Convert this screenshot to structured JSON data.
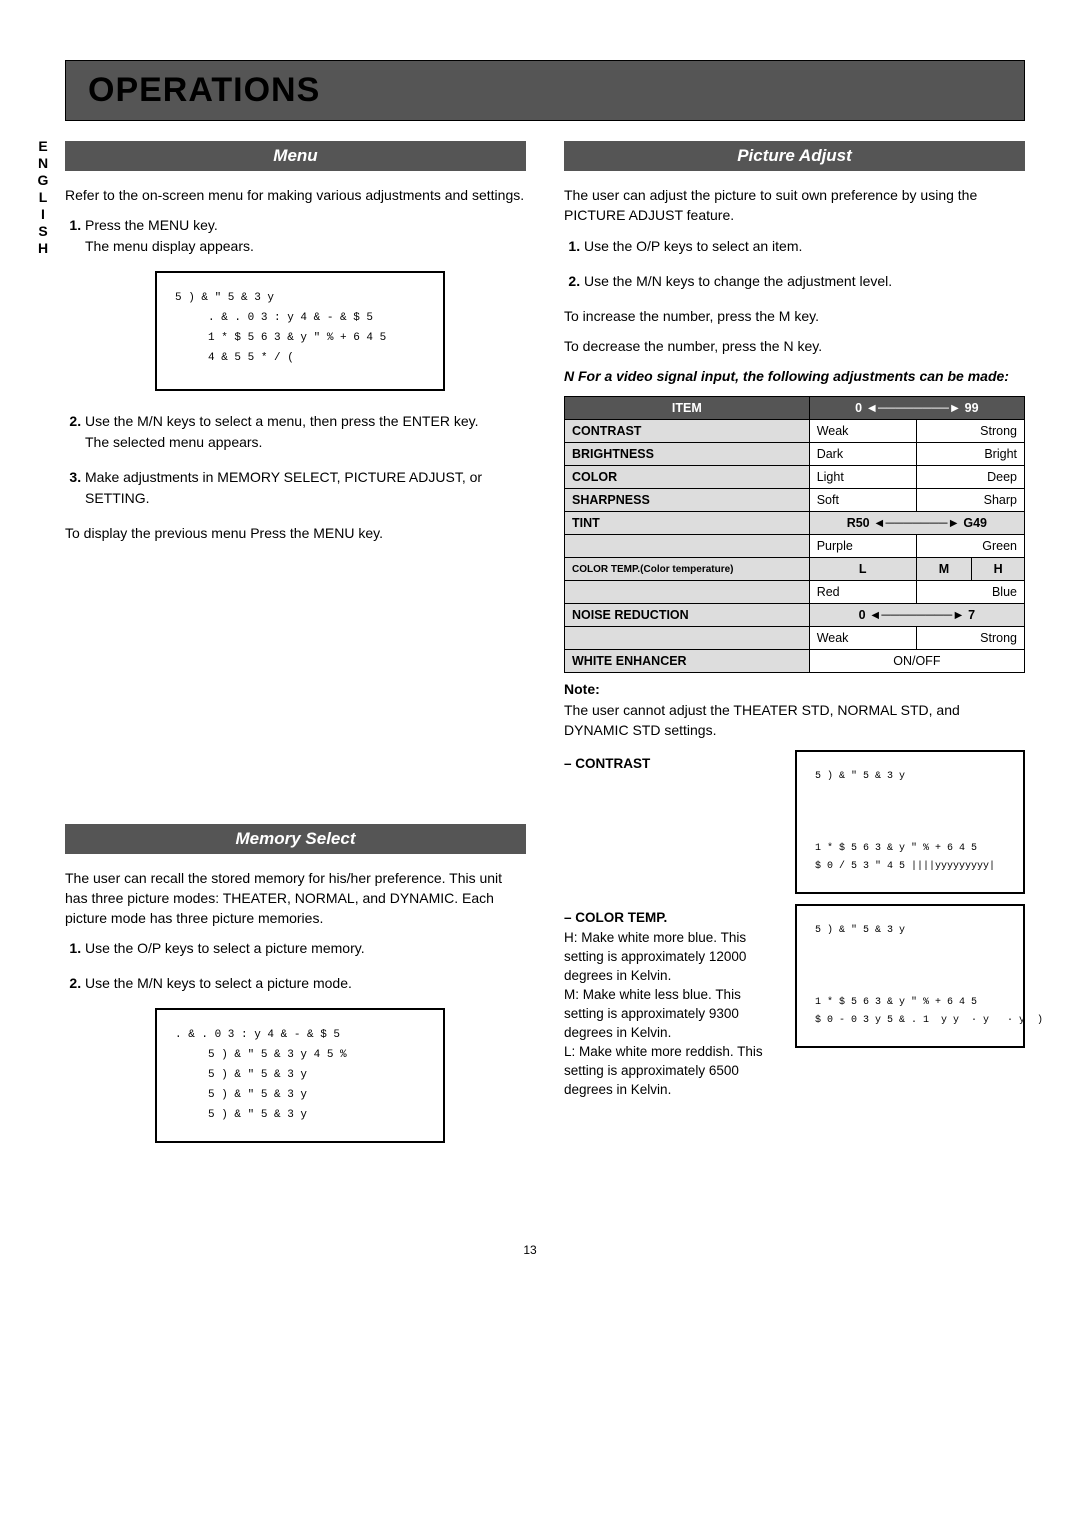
{
  "sidebar": "ENGLISH",
  "banner": "OPERATIONS",
  "left": {
    "menu": {
      "title": "Menu",
      "intro": "Refer to the on-screen menu for making various adjustments and settings.",
      "steps": [
        "Press the MENU key.\nThe menu display appears.",
        "Use the M/N  keys to select a menu, then press the ENTER key.\nThe selected menu appears.",
        "Make adjustments in MEMORY SELECT, PICTURE ADJUST, or SETTING."
      ],
      "osd": "5 ) & \" 5 & 3 y\n     . & . 0 3 : y 4 & - & $ 5\n     1 * $ 5 6 3 & y \" % + 6 4 5\n     4 & 5 5 * / (",
      "outro": "To display the previous menu Press the MENU key."
    },
    "memory": {
      "title": "Memory Select",
      "intro": "The user can recall the stored memory for his/her preference. This unit has three picture modes: THEATER, NORMAL, and DYNAMIC. Each picture mode has three picture memories.",
      "steps": [
        "Use the O/P  keys to select a picture memory.",
        "Use the M/N  keys to select a picture mode."
      ],
      "osd": ". & . 0 3 : y 4 & - & $ 5\n     5 ) & \" 5 & 3 y 4 5 %\n     5 ) & \" 5 & 3 y\n     5 ) & \" 5 & 3 y\n     5 ) & \" 5 & 3 y"
    }
  },
  "right": {
    "picture": {
      "title": "Picture Adjust",
      "intro": "The user can adjust the picture to suit own preference by using the PICTURE ADJUST feature.",
      "steps": [
        "Use the O/P  keys to select an item.",
        "Use the M/N  keys to change the adjustment level."
      ],
      "inc": "To increase the number, press the M  key.",
      "dec": "To decrease the number, press the N  key.",
      "tableLead": "N  For a video signal input, the following adjustments can be made:",
      "table": {
        "h_item": "ITEM",
        "h_low": "0",
        "h_high": "99",
        "rows": [
          {
            "item": "CONTRAST",
            "low": "Weak",
            "high": "Strong"
          },
          {
            "item": "BRIGHTNESS",
            "low": "Dark",
            "high": "Bright"
          },
          {
            "item": "COLOR",
            "low": "Light",
            "high": "Deep"
          },
          {
            "item": "SHARPNESS",
            "low": "Soft",
            "high": "Sharp"
          }
        ],
        "tint_item": "TINT",
        "tint_low": "R50",
        "tint_high": "G49",
        "tint2_low": "Purple",
        "tint2_high": "Green",
        "ct_item": "COLOR TEMP.(Color temperature)",
        "ct_l": "L",
        "ct_m": "M",
        "ct_h": "H",
        "ct2_low": "Red",
        "ct2_high": "Blue",
        "nr_item": "NOISE REDUCTION",
        "nr_low": "0",
        "nr_high": "7",
        "nr2_low": "Weak",
        "nr2_high": "Strong",
        "we_item": "WHITE ENHANCER",
        "we_val": "ON/OFF"
      },
      "noteHead": "Note:",
      "noteBody": "The user cannot adjust the THEATER STD, NORMAL STD, and DYNAMIC STD settings.",
      "contrast": {
        "label": "– CONTRAST",
        "osd": "5 ) & \" 5 & 3 y\n\n\n\n1 * $ 5 6 3 & y \" % + 6 4 5\n$ 0 / 5 3 \" 4 5 ||||yyyyyyyyy|"
      },
      "colortemp": {
        "label": "– COLOR TEMP.",
        "h": "H: Make white more blue. This setting is approximately 12000 degrees in Kelvin.",
        "m": "M: Make white less blue. This setting is approximately 9300 degrees in Kelvin.",
        "l": "L: Make white more reddish. This setting is approximately 6500 degrees in Kelvin.",
        "osd": "5 ) & \" 5 & 3 y\n\n\n\n1 * $ 5 6 3 & y \" % + 6 4 5\n$ 0 - 0 3 y 5 & . 1  y y  · y   · y  )"
      }
    }
  },
  "page": "13"
}
